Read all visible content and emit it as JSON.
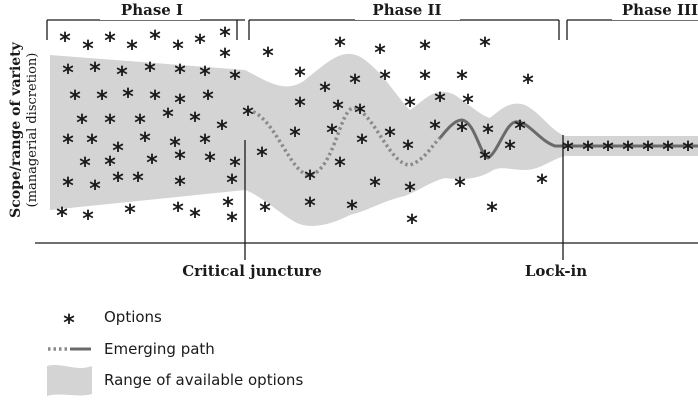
{
  "phases": [
    "Phase I",
    "Phase II",
    "Phase III"
  ],
  "y_axis": {
    "label": "Scope/range of variety",
    "sublabel": "(managerial discretion)"
  },
  "markers": {
    "critical_juncture": "Critical juncture",
    "lock_in": "Lock-in"
  },
  "legend": {
    "options": "Options",
    "path": "Emerging path",
    "range": "Range of available options"
  },
  "option_symbol": "*",
  "colors": {
    "range_fill": "#d4d4d4",
    "path_dotted": "#8a8a8a",
    "path_solid": "#6a6a6a",
    "ink": "#1a1a1a"
  }
}
